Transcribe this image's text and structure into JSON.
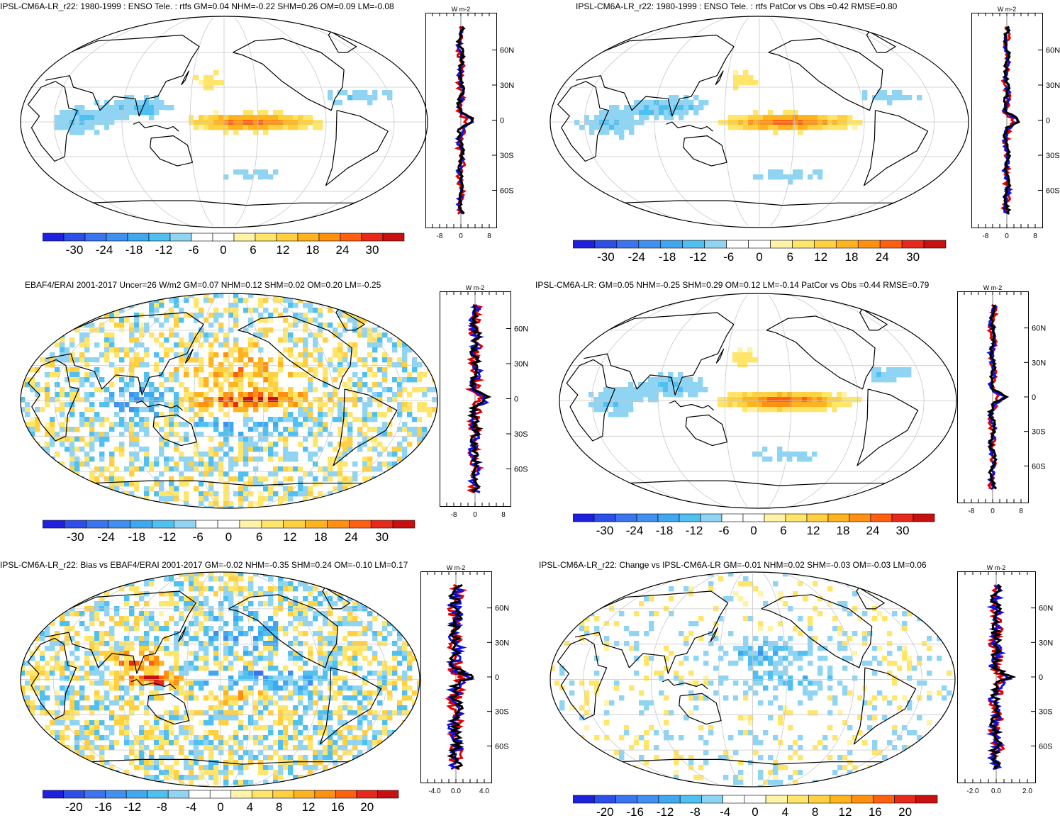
{
  "unit_label": "W m-2",
  "lat_labels": [
    "60N",
    "30N",
    "0",
    "30S",
    "60S"
  ],
  "palette": [
    "#1f1fe0",
    "#2b4fe8",
    "#3a74ee",
    "#3f90f0",
    "#40a8f0",
    "#4fc0ef",
    "#8fd4f3",
    "#ffffff",
    "#ffffff",
    "#fff3a8",
    "#ffe56a",
    "#ffd040",
    "#ffb41f",
    "#ff9010",
    "#ff6010",
    "#e8281a",
    "#c81010"
  ],
  "panels": [
    {
      "title": "IPSL-CM6A-LR_r22: 1980-1999 : ENSO Tele. : rtfs GM=0.04 NHM=-0.22 SHM=0.26 OM=0.09 LM=-0.08",
      "colorbar_ticks": [
        "-30",
        "-24",
        "-18",
        "-12",
        "-6",
        "0",
        "6",
        "12",
        "18",
        "24",
        "30"
      ],
      "profile_ticks": [
        "-8",
        "0",
        "8"
      ],
      "pattern": "enso_model"
    },
    {
      "title": "IPSL-CM6A-LR_r22: 1980-1999 : ENSO Tele. : rtfs PatCor vs Obs =0.42 RMSE=0.80",
      "colorbar_ticks": [
        "-30",
        "-24",
        "-18",
        "-12",
        "-6",
        "0",
        "6",
        "12",
        "18",
        "24",
        "30"
      ],
      "profile_ticks": [
        "-8",
        "0",
        "8"
      ],
      "pattern": "enso_model"
    },
    {
      "title": "EBAF4/ERAI 2001-2017 Uncer=26 W/m2 GM=0.07 NHM=0.12 SHM=0.02 OM=0.20 LM=-0.25",
      "colorbar_ticks": [
        "-30",
        "-24",
        "-18",
        "-12",
        "-6",
        "0",
        "6",
        "12",
        "18",
        "24",
        "30"
      ],
      "profile_ticks": [
        "-8",
        "0",
        "8"
      ],
      "pattern": "obs"
    },
    {
      "title": "IPSL-CM6A-LR: GM=0.05 NHM=-0.25 SHM=0.29 OM=0.12 LM=-0.14 PatCor vs Obs =0.44 RMSE=0.79",
      "colorbar_ticks": [
        "-30",
        "-24",
        "-18",
        "-12",
        "-6",
        "0",
        "6",
        "12",
        "18",
        "24",
        "30"
      ],
      "profile_ticks": [
        "-8",
        "0",
        "8"
      ],
      "pattern": "enso_model"
    },
    {
      "title": "IPSL-CM6A-LR_r22: Bias vs EBAF4/ERAI 2001-2017 GM=-0.02 NHM=-0.35 SHM=0.24 OM=-0.10 LM=0.17",
      "colorbar_ticks": [
        "-20",
        "-16",
        "-12",
        "-8",
        "-4",
        "0",
        "4",
        "8",
        "12",
        "16",
        "20"
      ],
      "profile_ticks": [
        "-4.0",
        "0.0",
        "4.0"
      ],
      "pattern": "bias"
    },
    {
      "title": "IPSL-CM6A-LR_r22: Change vs IPSL-CM6A-LR GM=-0.01 NHM=0.02 SHM=-0.03 OM=-0.03 LM=0.06",
      "colorbar_ticks": [
        "-20",
        "-16",
        "-12",
        "-8",
        "-4",
        "0",
        "4",
        "8",
        "12",
        "16",
        "20"
      ],
      "profile_ticks": [
        "-2.0",
        "0.0",
        "2.0"
      ],
      "pattern": "change"
    }
  ]
}
